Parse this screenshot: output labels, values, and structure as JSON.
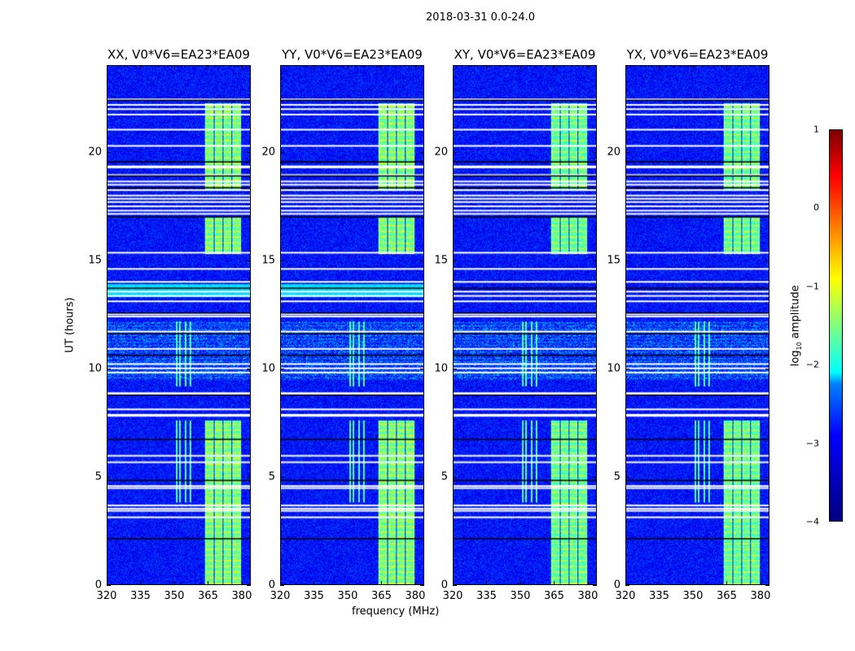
{
  "chart_data": {
    "type": "heatmap",
    "title": "2018-03-31 0.0-24.0",
    "xlabel": "frequency (MHz)",
    "ylabel": "UT (hours)",
    "xlim": [
      320,
      384
    ],
    "ylim": [
      0,
      24
    ],
    "xticks": [
      "320",
      "335",
      "350",
      "365",
      "380"
    ],
    "xtick_values": [
      320,
      335,
      350,
      365,
      380
    ],
    "yticks": [
      "0",
      "5",
      "10",
      "15",
      "20"
    ],
    "ytick_values": [
      0,
      5,
      10,
      15,
      20
    ],
    "panels": [
      {
        "title": "XX, V0*V6=EA23*EA09",
        "gain": 1.0,
        "cyan_band": true
      },
      {
        "title": "YY, V0*V6=EA23*EA09",
        "gain": 1.0,
        "cyan_band": true
      },
      {
        "title": "XY, V0*V6=EA23*EA09",
        "gain": 0.8,
        "cyan_band": false
      },
      {
        "title": "YX, V0*V6=EA23*EA09",
        "gain": 0.8,
        "cyan_band": false
      }
    ],
    "colorbar": {
      "label": "log10 amplitude",
      "label_main": "log",
      "label_sub": "10",
      "label_rest": " amplitude",
      "range": [
        -4,
        1
      ],
      "ticks": [
        "1",
        "0",
        "−1",
        "−2",
        "−3",
        "−4"
      ],
      "tick_values": [
        1,
        0,
        -1,
        -2,
        -3,
        -4
      ],
      "colormap": "jet"
    },
    "background_level": -3.3,
    "active_band_MHz": [
      [
        363.5,
        367.5
      ],
      [
        368,
        371.5
      ],
      [
        372,
        375.5
      ],
      [
        376,
        380
      ]
    ],
    "active_level": -1.6,
    "active_times_hr": [
      [
        0,
        7.6
      ],
      [
        15.3,
        17.0
      ],
      [
        18.3,
        22.3
      ]
    ],
    "rfi_channels_MHz": [
      351,
      352.5,
      355,
      357
    ],
    "rfi_times_hr": [
      [
        3.8,
        7.6
      ],
      [
        9.2,
        12.2
      ]
    ],
    "noisy_times_hr": [
      [
        9.5,
        12.2
      ]
    ],
    "cyan_times_hr": [
      [
        13.3,
        13.9
      ]
    ],
    "flagged_times_hr": [
      22.45,
      22.2,
      22.0,
      21.75,
      21.05,
      20.3,
      19.35,
      19.3,
      18.95,
      18.65,
      18.5,
      18.25,
      18.0,
      17.85,
      17.7,
      17.5,
      17.3,
      17.15,
      15.35,
      14.6,
      14.0,
      13.55,
      13.35,
      13.1,
      12.5,
      12.4,
      11.7,
      10.9,
      10.2,
      10.0,
      9.8,
      8.85,
      8.8,
      8.1,
      7.85,
      7.8,
      5.95,
      5.65,
      4.55,
      4.45,
      3.65,
      3.5,
      3.4,
      3.1
    ],
    "dark_times_hr": [
      22.4,
      19.55,
      18.9,
      18.35,
      17.0,
      13.7,
      12.55,
      11.6,
      10.6,
      8.75,
      6.7,
      4.8,
      2.1
    ]
  }
}
